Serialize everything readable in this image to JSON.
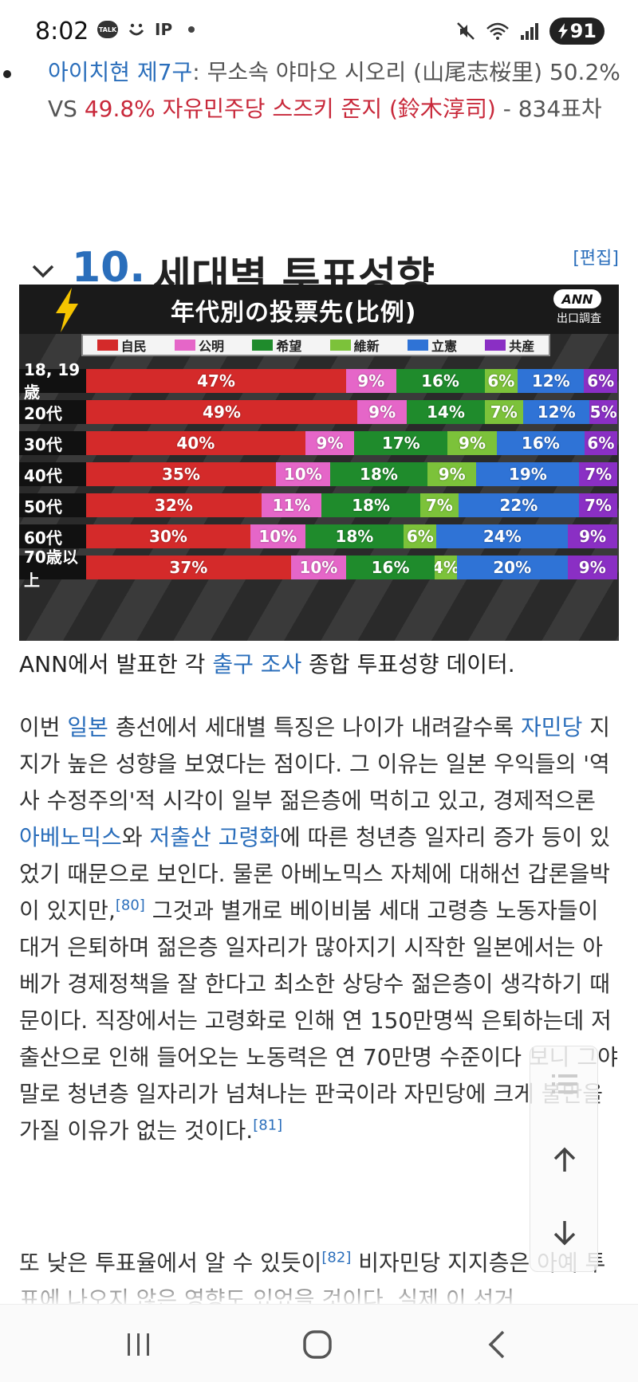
{
  "status": {
    "time": "8:02",
    "talk": "TALK",
    "ip": "IP",
    "battery": "91"
  },
  "bullet": {
    "district": "아이치현 제7구",
    "colon": ": ",
    "candidate1": "무소속 야마오 시오리 (山尾志桜里)",
    "pct1": "50.2%",
    "vs": " VS ",
    "candidate2": "49.8% 자유민주당 스즈키 준지 (鈴木淳司)",
    "margin": " - 834표차"
  },
  "section": {
    "number": "10.",
    "title": "세대별 투표성향",
    "edit": "[편집]"
  },
  "chart_data": {
    "type": "bar",
    "orientation": "horizontal-stacked-100",
    "title": "年代別の投票先(比例)",
    "badge": "ANN",
    "badge_sub": "出口調査",
    "categories": [
      "18, 19歳",
      "20代",
      "30代",
      "40代",
      "50代",
      "60代",
      "70歳以上"
    ],
    "series": [
      {
        "name": "自民",
        "color": "#d42a2a",
        "values": [
          47,
          49,
          40,
          35,
          32,
          30,
          37
        ]
      },
      {
        "name": "公明",
        "color": "#e566c8",
        "values": [
          9,
          9,
          9,
          10,
          11,
          10,
          10
        ]
      },
      {
        "name": "希望",
        "color": "#1f8b2c",
        "values": [
          16,
          14,
          17,
          18,
          18,
          18,
          16
        ]
      },
      {
        "name": "維新",
        "color": "#7cc23a",
        "values": [
          6,
          7,
          9,
          9,
          7,
          6,
          4
        ]
      },
      {
        "name": "立憲",
        "color": "#2f73d6",
        "values": [
          12,
          12,
          16,
          19,
          22,
          24,
          20
        ]
      },
      {
        "name": "共産",
        "color": "#8a2fc4",
        "values": [
          6,
          5,
          6,
          7,
          7,
          9,
          9
        ]
      }
    ],
    "legend_position": "top"
  },
  "caption": {
    "pre": "ANN에서 발표한 각 ",
    "link": "출구 조사",
    "post": " 종합 투표성향 데이터."
  },
  "paragraph1": {
    "t1": "이번 ",
    "l1": "일본",
    "t2": " 총선에서 세대별 특징은 나이가 내려갈수록 ",
    "l2": "자민당",
    "t3": " 지지가 높은 성향을 보였다는 점이다. 그 이유는 일본 우익들의 '역사 수정주의'적 시각이 일부 젊은층에 먹히고 있고, 경제적으론 ",
    "l3": "아베노믹스",
    "t4": "와 ",
    "l4": "저출산 고령화",
    "t5": "에 따른 청년층 일자리 증가 등이 있었기 때문으로 보인다. 물론 아베노믹스 자체에 대해선 갑론을박이 있지만,",
    "ref1": "[80]",
    "t6": " 그것과 별개로 베이비붐 세대 고령층 노동자들이 대거 은퇴하며 젊은층 일자리가 많아지기 시작한 일본에서는 아베가 경제정책을 잘 한다고 최소한 상당수 젊은층이 생각하기 때문이다. 직장에서는 고령화로 인해 연 150만명씩 은퇴하는데 저출산으로 인해 들어오는 노동력은 연 70만명 수준이다 보니 그야말로 청년층 일자리가 넘쳐나는 판국이라 자민당에 크게 불만을 가질 이유가 없는 것이다.",
    "ref2": "[81]"
  },
  "paragraph2": {
    "t1": "또 낮은 투표율에서 알 수 있듯이",
    "ref": "[82]",
    "t2": " 비자민당 지지층은 아예 투표에 나오지 않은 영향도 있었을 것이다. 실제 이 선거"
  },
  "icons": {
    "chevron": "chevron-down-icon",
    "toc": "list-icon",
    "up": "arrow-up-icon",
    "down": "arrow-down-icon",
    "recents": "recents-icon",
    "home": "home-icon",
    "back": "back-icon"
  }
}
